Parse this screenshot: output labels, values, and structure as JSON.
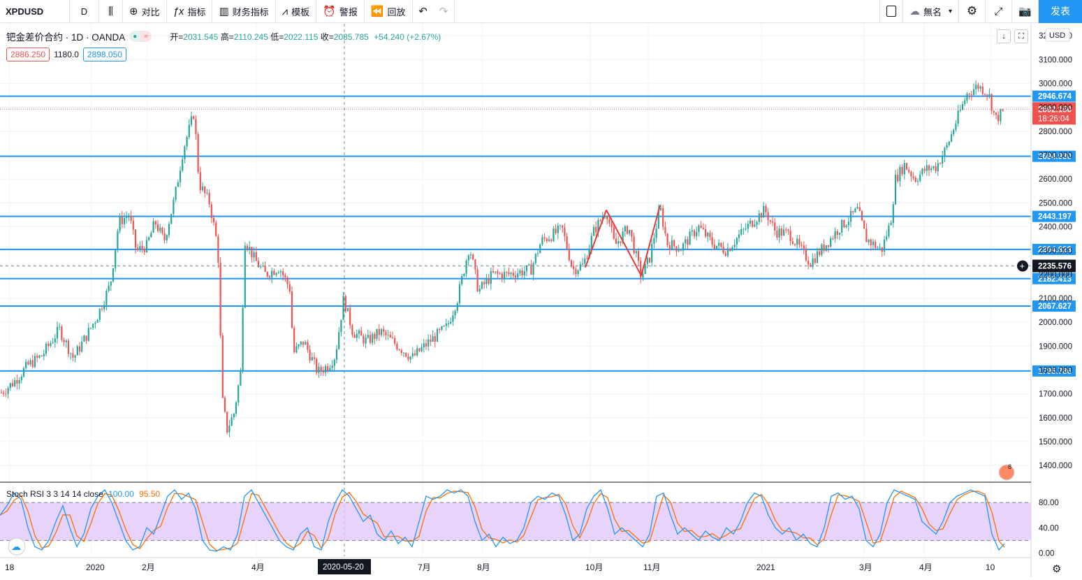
{
  "toolbar": {
    "symbol": "XPDUSD",
    "interval": "D",
    "compare": "对比",
    "indicators": "指标",
    "financials": "财务指标",
    "templates": "模板",
    "alert": "警报",
    "replay": "回放",
    "layout_name": "無名",
    "publish": "发表"
  },
  "legend": {
    "title": "钯金差价合约 · 1D · OANDA",
    "open_label": "开=",
    "open": "2031.545",
    "high_label": "高=",
    "high": "2110.245",
    "low_label": "低=",
    "low": "2022.115",
    "close_label": "收=",
    "close": "2085.785",
    "change": "+54.240 (+2.67%)"
  },
  "quote": {
    "sell": "2886.250",
    "spread": "1180.0",
    "buy": "2898.050"
  },
  "price_axis": {
    "currency": "USD",
    "ticks": [
      "3200.000",
      "3100.000",
      "3000.000",
      "2900.000",
      "2800.000",
      "2700.000",
      "2600.000",
      "2500.000",
      "2400.000",
      "2300.000",
      "2200.000",
      "2100.000",
      "2000.000",
      "1900.000",
      "1800.000",
      "1700.000",
      "1600.000",
      "1500.000",
      "1400.000"
    ],
    "current_price": "2892.150",
    "countdown": "18:26:04",
    "crosshair_price": "2235.576"
  },
  "horizontal_lines": [
    "2946.674",
    "2694.930",
    "2443.197",
    "2304.823",
    "2182.413",
    "2067.627",
    "1795.786"
  ],
  "time_axis": {
    "labels": [
      "18",
      "2020",
      "2月",
      "4月",
      "7月",
      "8月",
      "10月",
      "11月",
      "2021",
      "3月",
      "4月",
      "10"
    ],
    "crosshair_date": "2020-05-20"
  },
  "rsi": {
    "name": "Stoch RSI 3 3 14 14 close",
    "k_value": "100.00",
    "d_value": "95.50",
    "ticks": [
      "80.00",
      "40.00",
      "0.00"
    ]
  },
  "colors": {
    "up": "#26a69a",
    "down": "#ef5350",
    "hline": "#2196f3",
    "k_line": "#2196f3",
    "d_line": "#ff6d00",
    "rsi_band": "#e1c8fa"
  },
  "chart_data": {
    "type": "candlestick",
    "ylim": [
      1330,
      3250
    ],
    "rsi_ylim": [
      -5,
      110
    ],
    "hlines": [
      2946.674,
      2694.93,
      2443.197,
      2304.823,
      2182.413,
      2067.627,
      1795.786
    ],
    "path": [
      [
        0,
        1700
      ],
      [
        20,
        1750
      ],
      [
        40,
        1820
      ],
      [
        60,
        1860
      ],
      [
        85,
        1970
      ],
      [
        105,
        1850
      ],
      [
        125,
        1950
      ],
      [
        140,
        2030
      ],
      [
        158,
        2160
      ],
      [
        170,
        2420
      ],
      [
        185,
        2450
      ],
      [
        195,
        2300
      ],
      [
        210,
        2320
      ],
      [
        222,
        2420
      ],
      [
        235,
        2340
      ],
      [
        250,
        2520
      ],
      [
        262,
        2720
      ],
      [
        278,
        2880
      ],
      [
        285,
        2580
      ],
      [
        300,
        2500
      ],
      [
        312,
        2310
      ],
      [
        318,
        1680
      ],
      [
        325,
        1550
      ],
      [
        335,
        1620
      ],
      [
        345,
        1800
      ],
      [
        350,
        2350
      ],
      [
        365,
        2260
      ],
      [
        380,
        2200
      ],
      [
        400,
        2230
      ],
      [
        415,
        2140
      ],
      [
        420,
        1870
      ],
      [
        435,
        1920
      ],
      [
        455,
        1790
      ],
      [
        470,
        1820
      ],
      [
        480,
        1860
      ],
      [
        492,
        2100
      ],
      [
        505,
        1960
      ],
      [
        525,
        1920
      ],
      [
        545,
        1960
      ],
      [
        570,
        1900
      ],
      [
        590,
        1850
      ],
      [
        615,
        1920
      ],
      [
        640,
        1980
      ],
      [
        655,
        2100
      ],
      [
        672,
        2320
      ],
      [
        685,
        2130
      ],
      [
        705,
        2200
      ],
      [
        725,
        2200
      ],
      [
        760,
        2220
      ],
      [
        775,
        2340
      ],
      [
        805,
        2390
      ],
      [
        820,
        2220
      ],
      [
        835,
        2240
      ],
      [
        850,
        2380
      ],
      [
        868,
        2470
      ],
      [
        880,
        2320
      ],
      [
        900,
        2400
      ],
      [
        918,
        2190
      ],
      [
        930,
        2270
      ],
      [
        945,
        2480
      ],
      [
        955,
        2330
      ],
      [
        975,
        2310
      ],
      [
        1000,
        2400
      ],
      [
        1020,
        2330
      ],
      [
        1040,
        2300
      ],
      [
        1060,
        2370
      ],
      [
        1080,
        2430
      ],
      [
        1095,
        2470
      ],
      [
        1110,
        2380
      ],
      [
        1130,
        2370
      ],
      [
        1160,
        2250
      ],
      [
        1175,
        2300
      ],
      [
        1200,
        2390
      ],
      [
        1228,
        2470
      ],
      [
        1240,
        2350
      ],
      [
        1262,
        2300
      ],
      [
        1275,
        2420
      ],
      [
        1282,
        2600
      ],
      [
        1295,
        2660
      ],
      [
        1310,
        2600
      ],
      [
        1325,
        2640
      ],
      [
        1340,
        2650
      ],
      [
        1355,
        2730
      ],
      [
        1370,
        2850
      ],
      [
        1385,
        2960
      ],
      [
        1400,
        2990
      ],
      [
        1415,
        2960
      ],
      [
        1425,
        2850
      ],
      [
        1438,
        2885
      ]
    ],
    "rsi_k": [
      [
        0,
        60
      ],
      [
        10,
        75
      ],
      [
        20,
        95
      ],
      [
        30,
        85
      ],
      [
        40,
        40
      ],
      [
        50,
        10
      ],
      [
        60,
        5
      ],
      [
        70,
        20
      ],
      [
        80,
        50
      ],
      [
        90,
        75
      ],
      [
        100,
        40
      ],
      [
        110,
        10
      ],
      [
        120,
        30
      ],
      [
        130,
        70
      ],
      [
        140,
        90
      ],
      [
        150,
        100
      ],
      [
        160,
        80
      ],
      [
        170,
        50
      ],
      [
        180,
        20
      ],
      [
        190,
        5
      ],
      [
        200,
        10
      ],
      [
        210,
        40
      ],
      [
        220,
        30
      ],
      [
        230,
        60
      ],
      [
        240,
        90
      ],
      [
        250,
        100
      ],
      [
        260,
        85
      ],
      [
        270,
        95
      ],
      [
        280,
        70
      ],
      [
        290,
        20
      ],
      [
        300,
        5
      ],
      [
        310,
        3
      ],
      [
        320,
        10
      ],
      [
        330,
        5
      ],
      [
        340,
        30
      ],
      [
        350,
        90
      ],
      [
        360,
        100
      ],
      [
        370,
        80
      ],
      [
        380,
        60
      ],
      [
        390,
        40
      ],
      [
        400,
        20
      ],
      [
        410,
        10
      ],
      [
        420,
        5
      ],
      [
        430,
        30
      ],
      [
        440,
        40
      ],
      [
        450,
        10
      ],
      [
        460,
        5
      ],
      [
        470,
        50
      ],
      [
        480,
        80
      ],
      [
        490,
        100
      ],
      [
        500,
        90
      ],
      [
        510,
        70
      ],
      [
        520,
        50
      ],
      [
        530,
        60
      ],
      [
        540,
        30
      ],
      [
        550,
        20
      ],
      [
        560,
        35
      ],
      [
        570,
        15
      ],
      [
        580,
        25
      ],
      [
        590,
        10
      ],
      [
        600,
        50
      ],
      [
        610,
        90
      ],
      [
        620,
        85
      ],
      [
        630,
        90
      ],
      [
        640,
        100
      ],
      [
        650,
        95
      ],
      [
        660,
        100
      ],
      [
        670,
        90
      ],
      [
        680,
        50
      ],
      [
        690,
        20
      ],
      [
        700,
        30
      ],
      [
        710,
        10
      ],
      [
        720,
        25
      ],
      [
        730,
        15
      ],
      [
        740,
        20
      ],
      [
        750,
        40
      ],
      [
        760,
        80
      ],
      [
        770,
        90
      ],
      [
        780,
        85
      ],
      [
        790,
        95
      ],
      [
        800,
        90
      ],
      [
        810,
        60
      ],
      [
        820,
        20
      ],
      [
        830,
        30
      ],
      [
        840,
        70
      ],
      [
        850,
        90
      ],
      [
        860,
        100
      ],
      [
        870,
        70
      ],
      [
        880,
        30
      ],
      [
        890,
        40
      ],
      [
        900,
        30
      ],
      [
        910,
        20
      ],
      [
        920,
        10
      ],
      [
        930,
        30
      ],
      [
        940,
        90
      ],
      [
        950,
        95
      ],
      [
        960,
        60
      ],
      [
        970,
        30
      ],
      [
        980,
        40
      ],
      [
        990,
        30
      ],
      [
        1000,
        20
      ],
      [
        1010,
        35
      ],
      [
        1020,
        25
      ],
      [
        1030,
        20
      ],
      [
        1040,
        40
      ],
      [
        1050,
        30
      ],
      [
        1060,
        50
      ],
      [
        1070,
        80
      ],
      [
        1080,
        95
      ],
      [
        1090,
        90
      ],
      [
        1100,
        60
      ],
      [
        1110,
        40
      ],
      [
        1120,
        30
      ],
      [
        1130,
        40
      ],
      [
        1140,
        20
      ],
      [
        1150,
        30
      ],
      [
        1160,
        15
      ],
      [
        1170,
        10
      ],
      [
        1180,
        40
      ],
      [
        1190,
        90
      ],
      [
        1200,
        95
      ],
      [
        1210,
        85
      ],
      [
        1220,
        90
      ],
      [
        1230,
        70
      ],
      [
        1240,
        20
      ],
      [
        1250,
        10
      ],
      [
        1260,
        30
      ],
      [
        1270,
        80
      ],
      [
        1280,
        100
      ],
      [
        1290,
        95
      ],
      [
        1300,
        90
      ],
      [
        1310,
        85
      ],
      [
        1320,
        50
      ],
      [
        1330,
        40
      ],
      [
        1340,
        30
      ],
      [
        1350,
        50
      ],
      [
        1360,
        80
      ],
      [
        1370,
        90
      ],
      [
        1380,
        95
      ],
      [
        1390,
        100
      ],
      [
        1400,
        95
      ],
      [
        1410,
        90
      ],
      [
        1420,
        30
      ],
      [
        1430,
        5
      ],
      [
        1438,
        15
      ]
    ]
  }
}
